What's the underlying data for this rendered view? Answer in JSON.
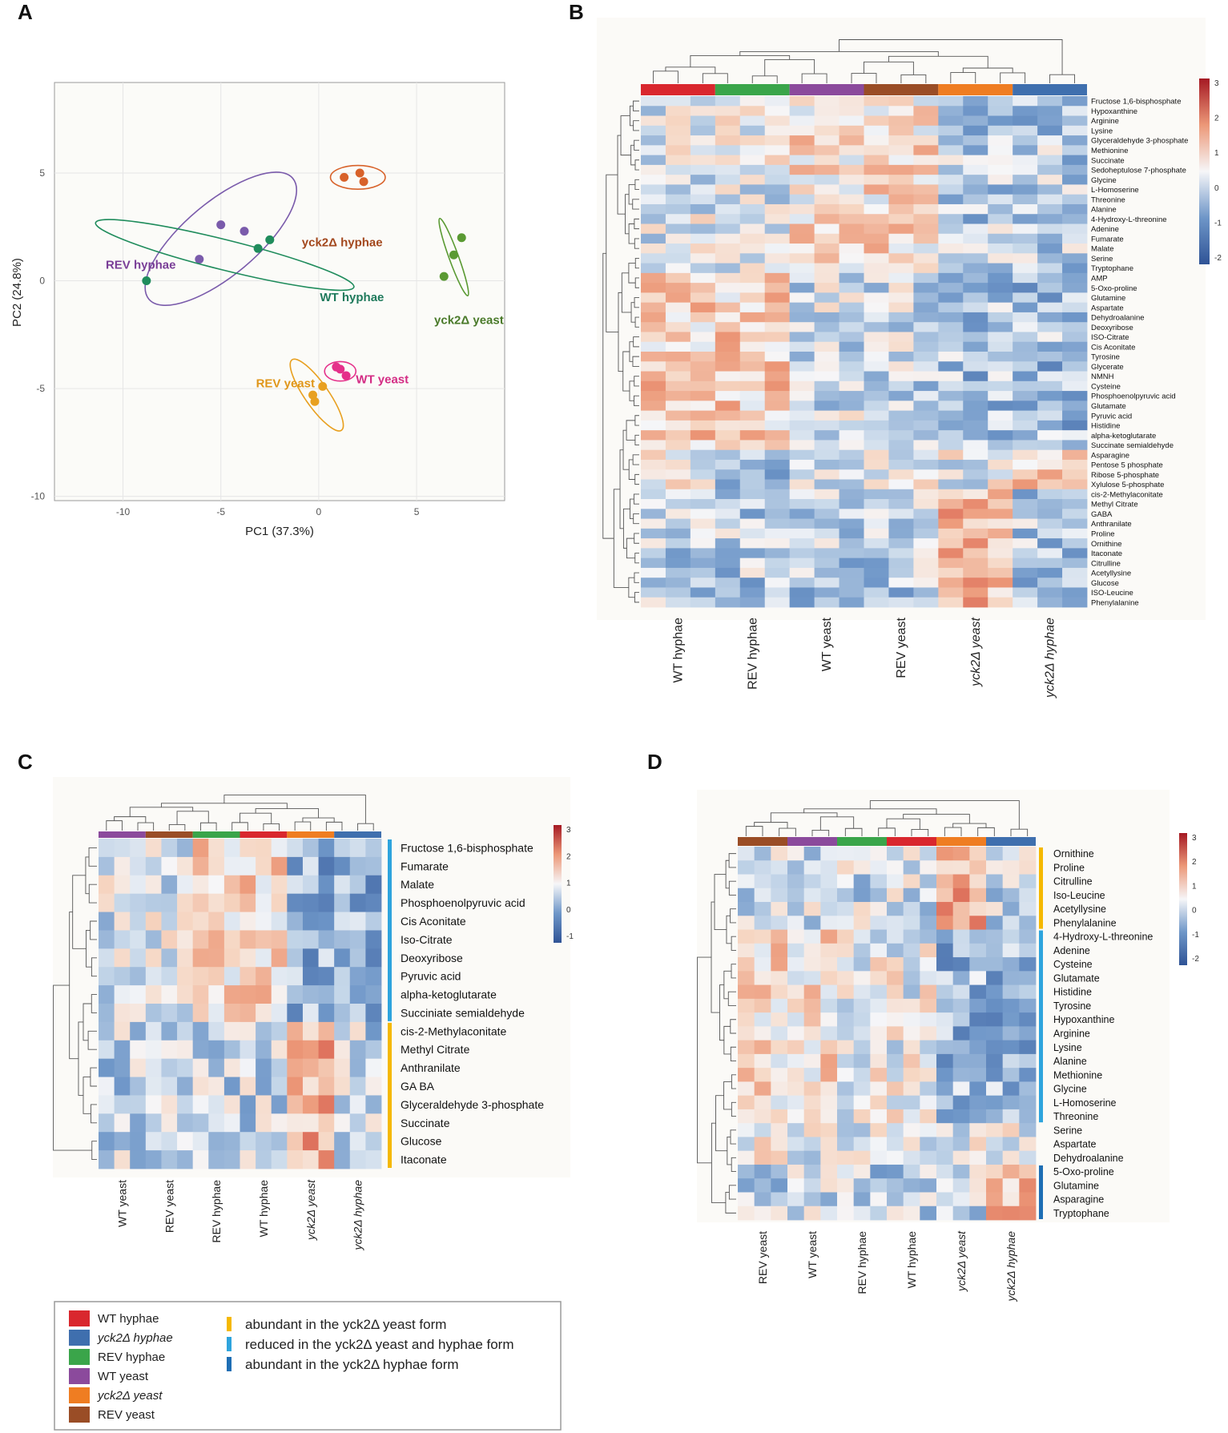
{
  "panels": {
    "a": "A",
    "b": "B",
    "c": "C",
    "d": "D"
  },
  "colors": {
    "wt_hyphae": "#d9272e",
    "yck2_hyphae": "#3f6fae",
    "rev_hyphae": "#3aa54a",
    "wt_yeast": "#8b4a9c",
    "yck2_yeast": "#ef7d22",
    "rev_yeast": "#9a4d26",
    "abundant_yeast": "#f5b800",
    "reduced": "#2ea4dd",
    "abundant_hyphae": "#1e6eb4"
  },
  "chart_data": [
    {
      "type": "scatter",
      "panel": "A",
      "xlabel": "PC1 (37.3%)",
      "ylabel": "PC2 (24.8%)",
      "xlim": [
        -13.5,
        9.5
      ],
      "ylim": [
        -10.2,
        9.2
      ],
      "xticks": [
        -10,
        -5,
        0,
        5
      ],
      "yticks": [
        5,
        0,
        -5,
        -10
      ],
      "grid": true,
      "series": [
        {
          "name": "yck2Δ hyphae",
          "color": "#d8622a",
          "label_color": "#a3481e",
          "points": [
            [
              1.3,
              4.8
            ],
            [
              2.1,
              5.0
            ],
            [
              2.3,
              4.6
            ]
          ],
          "ellipse": {
            "cx": 2.0,
            "cy": 4.8,
            "rx": 1.4,
            "ry": 0.55,
            "angle": 0
          }
        },
        {
          "name": "REV hyphae",
          "color": "#7a5bab",
          "label_color": "#7a3e97",
          "points": [
            [
              -5.0,
              2.6
            ],
            [
              -3.8,
              2.3
            ],
            [
              -6.1,
              1.0
            ]
          ],
          "ellipse": {
            "cx": -5.0,
            "cy": 1.95,
            "rx": 4.8,
            "ry": 1.7,
            "angle": -40
          }
        },
        {
          "name": "WT hyphae",
          "color": "#1f8c5c",
          "label_color": "#1f7a5c",
          "points": [
            [
              -8.8,
              0.0
            ],
            [
              -3.1,
              1.5
            ],
            [
              -2.5,
              1.9
            ]
          ],
          "ellipse": {
            "cx": -4.8,
            "cy": 1.2,
            "rx": 6.8,
            "ry": 0.7,
            "angle": 14
          }
        },
        {
          "name": "yck2Δ yeast",
          "color": "#5a9a33",
          "label_color": "#4a7a2a",
          "points": [
            [
              6.4,
              0.2
            ],
            [
              6.9,
              1.2
            ],
            [
              7.3,
              2.0
            ]
          ],
          "ellipse": {
            "cx": 6.9,
            "cy": 1.1,
            "rx": 2.1,
            "ry": 0.22,
            "angle": 70
          }
        },
        {
          "name": "REV yeast",
          "color": "#e8a020",
          "label_color": "#e0961a",
          "points": [
            [
              -0.3,
              -5.3
            ],
            [
              -0.2,
              -5.6
            ],
            [
              0.2,
              -4.9
            ]
          ],
          "ellipse": {
            "cx": -0.1,
            "cy": -5.3,
            "rx": 2.2,
            "ry": 0.55,
            "angle": 55
          }
        },
        {
          "name": "WT yeast",
          "color": "#e5308a",
          "label_color": "#d42d85",
          "points": [
            [
              0.9,
              -4.0
            ],
            [
              1.1,
              -4.1
            ],
            [
              1.4,
              -4.4
            ]
          ],
          "ellipse": {
            "cx": 1.1,
            "cy": -4.2,
            "rx": 0.8,
            "ry": 0.45,
            "angle": 0
          }
        }
      ]
    },
    {
      "type": "heatmap",
      "panel": "B",
      "colorbar": {
        "ticks": [
          "3",
          "2",
          "1",
          "0",
          "-1",
          "-2"
        ]
      },
      "columns": [
        "WT hyphae",
        "REV hyphae",
        "WT yeast",
        "REV yeast",
        "yck2Δ yeast",
        "yck2Δ hyphae"
      ],
      "column_group_colors": [
        "#d9272e",
        "#3aa54a",
        "#8b4a9c",
        "#9a4d26",
        "#ef7d22",
        "#3f6fae"
      ],
      "rows": [
        "Fructose 1,6-bisphosphate",
        "Hypoxanthine",
        "Arginine",
        "Lysine",
        "Glyceraldehyde 3-phosphate",
        "Methionine",
        "Succinate",
        "Sedoheptulose 7-phosphate",
        "Glycine",
        "L-Homoserine",
        "Threonine",
        "Alanine",
        "4-Hydroxy-L-threonine",
        "Adenine",
        "Fumarate",
        "Malate",
        "Serine",
        "Tryptophane",
        "AMP",
        "5-Oxo-proline",
        "Glutamine",
        "Aspartate",
        "Dehydroalanine",
        "Deoxyribose",
        "ISO-Citrate",
        "Cis Aconitate",
        "Tyrosine",
        "Glycerate",
        "NMNH",
        "Cysteine",
        "Phosphoenolpyruvic acid",
        "Glutamate",
        "Pyruvic acid",
        "Histidine",
        "alpha-ketoglutarate",
        "Succinate semialdehyde",
        "Asparagine",
        "Pentose 5 phosphate",
        "Ribose 5-phosphate",
        "Xylulose 5-phosphate",
        "cis-2-Methylaconitate",
        "Methyl Citrate",
        "GABA",
        "Anthranilate",
        "Proline",
        "Ornithine",
        "Itaconate",
        "Citrulline",
        "Acetyllysine",
        "Glucose",
        "ISO-Leucine",
        "Phenylalanine"
      ]
    },
    {
      "type": "heatmap",
      "panel": "C",
      "colorbar": {
        "ticks": [
          "3",
          "2",
          "1",
          "0",
          "-1"
        ]
      },
      "columns": [
        "WT yeast",
        "REV yeast",
        "REV hyphae",
        "WT hyphae",
        "yck2Δ yeast",
        "yck2Δ hyphae"
      ],
      "column_group_colors": [
        "#8b4a9c",
        "#9a4d26",
        "#3aa54a",
        "#d9272e",
        "#ef7d22",
        "#3f6fae"
      ],
      "rows": [
        "Fructose 1,6-bisphosphate",
        "Fumarate",
        "Malate",
        "Phosphoenolpyruvic acid",
        "Cis Aconitate",
        "Iso-Citrate",
        "Deoxyribose",
        "Pyruvic acid",
        "alpha-ketoglutarate",
        "Succiniate semialdehyde",
        "cis-2-Methylaconitate",
        "Methyl Citrate",
        "Anthranilate",
        "GA BA",
        "Glyceraldehyde 3-phosphate",
        "Succinate",
        "Glucose",
        "Itaconate"
      ]
    },
    {
      "type": "heatmap",
      "panel": "D",
      "colorbar": {
        "ticks": [
          "3",
          "2",
          "1",
          "0",
          "-1",
          "-2"
        ]
      },
      "columns": [
        "REV yeast",
        "WT yeast",
        "REV hyphae",
        "WT hyphae",
        "yck2Δ yeast",
        "yck2Δ hyphae"
      ],
      "column_group_colors": [
        "#9a4d26",
        "#8b4a9c",
        "#3aa54a",
        "#d9272e",
        "#ef7d22",
        "#3f6fae"
      ],
      "rows": [
        "Ornithine",
        "Proline",
        "Citrulline",
        "Iso-Leucine",
        "Acetyllysine",
        "Phenylalanine",
        "4-Hydroxy-L-threonine",
        "Adenine",
        "Cysteine",
        "Glutamate",
        "Histidine",
        "Tyrosine",
        "Hypoxanthine",
        "Arginine",
        "Lysine",
        "Alanine",
        "Methionine",
        "Glycine",
        "L-Homoserine",
        "Threonine",
        "Serine",
        "Aspartate",
        "Dehydroalanine",
        "5-Oxo-proline",
        "Glutamine",
        "Asparagine",
        "Tryptophane"
      ]
    }
  ],
  "legend": {
    "groups": [
      {
        "label": "WT hyphae",
        "color": "#d9272e"
      },
      {
        "label": "yck2Δ hyphae",
        "color": "#3f6fae"
      },
      {
        "label": "REV hyphae",
        "color": "#3aa54a"
      },
      {
        "label": "WT yeast",
        "color": "#8b4a9c"
      },
      {
        "label": "yck2Δ yeast",
        "color": "#ef7d22"
      },
      {
        "label": "REV yeast",
        "color": "#9a4d26"
      }
    ],
    "clusters": [
      {
        "label": "abundant in the yck2Δ yeast form",
        "color": "#f5b800"
      },
      {
        "label": "reduced in the yck2Δ yeast and hyphae form",
        "color": "#2ea4dd"
      },
      {
        "label": "abundant in the yck2Δ hyphae form",
        "color": "#1e6eb4"
      }
    ]
  }
}
